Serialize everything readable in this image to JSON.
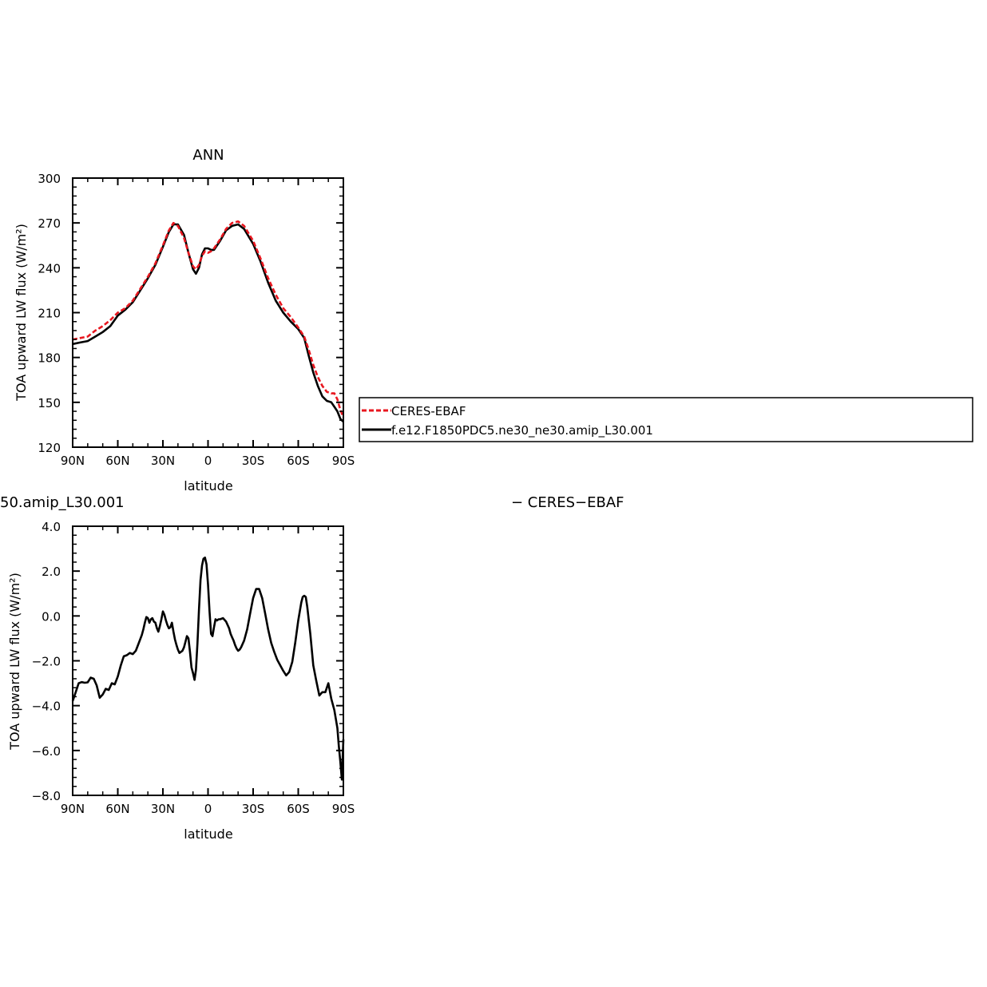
{
  "colors": {
    "model": "#000000",
    "obs": "#e8171f",
    "axis": "#000000"
  },
  "legend": {
    "entries": [
      "CERES-EBAF",
      "f.e12.F1850PDC5.ne30_ne30.amip_L30.001"
    ]
  },
  "diff_title": {
    "left": "50.amip_L30.001",
    "right": "− CERES−EBAF"
  },
  "chart_data": [
    {
      "type": "line",
      "title": "ANN",
      "xlabel": "latitude",
      "ylabel": "TOA upward LW flux (W/m²)",
      "xlim": [
        90,
        -90
      ],
      "ylim": [
        120,
        300
      ],
      "x_ticks": [
        90,
        60,
        30,
        0,
        -30,
        -60,
        -90
      ],
      "x_tick_labels": [
        "90N",
        "60N",
        "30N",
        "0",
        "30S",
        "60S",
        "90S"
      ],
      "y_ticks": [
        120,
        150,
        180,
        210,
        240,
        270,
        300
      ],
      "y_tick_labels": [
        "120",
        "150",
        "180",
        "210",
        "240",
        "270",
        "300"
      ],
      "grid": false,
      "series": [
        {
          "name": "CERES-EBAF",
          "style": "dashed",
          "color": "#e8171f",
          "x": [
            90,
            85,
            80,
            75,
            70,
            65,
            60,
            55,
            50,
            45,
            40,
            35,
            30,
            26,
            23,
            20,
            16,
            13,
            10,
            8,
            6,
            4,
            2,
            0,
            -2,
            -4,
            -8,
            -12,
            -16,
            -20,
            -24,
            -30,
            -35,
            -40,
            -45,
            -50,
            -55,
            -60,
            -64,
            -67,
            -70,
            -73,
            -76,
            -79,
            -82,
            -84,
            -86,
            -88,
            -90
          ],
          "y": [
            192,
            193,
            194,
            198,
            201,
            205,
            210,
            213,
            218,
            226,
            234,
            243,
            255,
            265,
            270,
            268,
            260,
            250,
            241,
            239,
            242,
            248,
            251,
            250,
            251,
            253,
            259,
            266,
            270,
            271,
            268,
            258,
            246,
            233,
            222,
            213,
            207,
            200,
            194,
            185,
            175,
            167,
            161,
            157,
            156,
            156,
            152,
            145,
            140
          ]
        },
        {
          "name": "f.e12.F1850PDC5.ne30_ne30.amip_L30.001",
          "style": "solid",
          "color": "#000000",
          "x": [
            90,
            85,
            80,
            75,
            70,
            65,
            60,
            55,
            50,
            45,
            40,
            35,
            30,
            26,
            23,
            20,
            16,
            13,
            10,
            8,
            6,
            4,
            2,
            0,
            -2,
            -4,
            -8,
            -12,
            -16,
            -20,
            -24,
            -30,
            -35,
            -40,
            -45,
            -50,
            -55,
            -60,
            -64,
            -67,
            -70,
            -73,
            -76,
            -79,
            -82,
            -84,
            -86,
            -88,
            -90
          ],
          "y": [
            189,
            190,
            191,
            194,
            197,
            201,
            208,
            212,
            217,
            225,
            233,
            242,
            254,
            264,
            269,
            269,
            262,
            250,
            239,
            236,
            240,
            249,
            253,
            253,
            252,
            252,
            258,
            265,
            268,
            269,
            266,
            256,
            244,
            230,
            218,
            210,
            204,
            199,
            193,
            181,
            170,
            161,
            154,
            151,
            150,
            147,
            144,
            139,
            137
          ]
        }
      ]
    },
    {
      "type": "line",
      "title": "",
      "xlabel": "latitude",
      "ylabel": "TOA upward LW flux (W/m²)",
      "xlim": [
        90,
        -90
      ],
      "ylim": [
        -8,
        4
      ],
      "x_ticks": [
        90,
        60,
        30,
        0,
        -30,
        -60,
        -90
      ],
      "x_tick_labels": [
        "90N",
        "60N",
        "30N",
        "0",
        "30S",
        "60S",
        "90S"
      ],
      "y_ticks": [
        -8,
        -6,
        -4,
        -2,
        0,
        2,
        4
      ],
      "y_tick_labels": [
        "−8.0",
        "−6.0",
        "−4.0",
        "−2.0",
        "0.0",
        "2.0",
        "4.0"
      ],
      "grid": false,
      "series": [
        {
          "style": "solid",
          "color": "#000000",
          "x": [
            90,
            88,
            86,
            84,
            82,
            80,
            78,
            76,
            74,
            72,
            70,
            68,
            66,
            64,
            62,
            60,
            58,
            56,
            54,
            52,
            50,
            48,
            46,
            44,
            43,
            42,
            41,
            40,
            39,
            38,
            37,
            36,
            35,
            34,
            33,
            32,
            31,
            30,
            29,
            28,
            27,
            26,
            25,
            24,
            23,
            22,
            21,
            20,
            19,
            18,
            17,
            16,
            15,
            14,
            13,
            12,
            11,
            10,
            9,
            8,
            7,
            6,
            5,
            4,
            3,
            2,
            1,
            0,
            -1,
            -2,
            -3,
            -4,
            -5,
            -6,
            -7,
            -8,
            -10,
            -12,
            -14,
            -15,
            -16,
            -17,
            -18,
            -19,
            -20,
            -21,
            -22,
            -24,
            -26,
            -28,
            -30,
            -32,
            -34,
            -36,
            -38,
            -40,
            -42,
            -44,
            -46,
            -48,
            -50,
            -52,
            -54,
            -56,
            -58,
            -60,
            -62,
            -63,
            -64,
            -65,
            -66,
            -68,
            -70,
            -72,
            -74,
            -76,
            -78,
            -80,
            -82,
            -84,
            -86,
            -87,
            -88,
            -89,
            -90
          ],
          "y": [
            -3.8,
            -3.4,
            -3.0,
            -2.95,
            -2.98,
            -2.96,
            -2.75,
            -2.8,
            -3.1,
            -3.65,
            -3.5,
            -3.25,
            -3.3,
            -3.0,
            -3.05,
            -2.7,
            -2.2,
            -1.8,
            -1.75,
            -1.65,
            -1.7,
            -1.55,
            -1.2,
            -0.85,
            -0.6,
            -0.3,
            -0.05,
            -0.1,
            -0.3,
            -0.15,
            -0.1,
            -0.25,
            -0.3,
            -0.55,
            -0.7,
            -0.45,
            -0.15,
            0.2,
            0.05,
            -0.2,
            -0.4,
            -0.55,
            -0.5,
            -0.3,
            -0.7,
            -1.05,
            -1.3,
            -1.5,
            -1.65,
            -1.6,
            -1.55,
            -1.4,
            -1.15,
            -0.9,
            -1.0,
            -1.6,
            -2.3,
            -2.55,
            -2.85,
            -2.4,
            -1.2,
            0.3,
            1.6,
            2.25,
            2.55,
            2.6,
            2.3,
            1.4,
            0.2,
            -0.8,
            -0.9,
            -0.5,
            -0.15,
            -0.2,
            -0.15,
            -0.15,
            -0.1,
            -0.25,
            -0.55,
            -0.8,
            -0.95,
            -1.1,
            -1.3,
            -1.45,
            -1.55,
            -1.5,
            -1.4,
            -1.1,
            -0.6,
            0.1,
            0.8,
            1.2,
            1.2,
            0.8,
            0.1,
            -0.6,
            -1.2,
            -1.6,
            -1.95,
            -2.2,
            -2.45,
            -2.65,
            -2.5,
            -2.05,
            -1.2,
            -0.2,
            0.6,
            0.85,
            0.9,
            0.85,
            0.4,
            -0.8,
            -2.2,
            -2.9,
            -3.55,
            -3.4,
            -3.4,
            -3.0,
            -3.7,
            -4.2,
            -5.0,
            -5.8,
            -6.5,
            -7.3,
            -5.5
          ]
        }
      ]
    }
  ]
}
